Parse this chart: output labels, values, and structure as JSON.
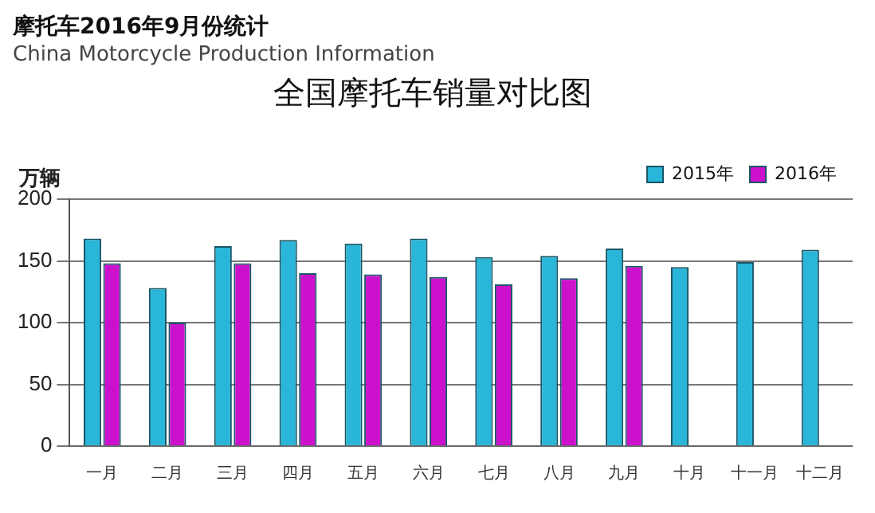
{
  "chart_data": {
    "type": "bar",
    "title": "全国摩托车销量对比图",
    "subtitle": "China Motorcycle Production Information",
    "annotations": [
      "摩托车2016年9月份统计"
    ],
    "ylabel": "万辆",
    "categories": [
      "一月",
      "二月",
      "三月",
      "四月",
      "五月",
      "六月",
      "七月",
      "八月",
      "九月",
      "十月",
      "十一月",
      "十二月"
    ],
    "series": [
      {
        "name": "2015年",
        "color": "#29b6d8",
        "values": [
          168,
          128,
          162,
          167,
          164,
          168,
          153,
          154,
          160,
          145,
          149,
          159
        ]
      },
      {
        "name": "2016年",
        "color": "#cc11cc",
        "values": [
          148,
          100,
          148,
          140,
          139,
          137,
          131,
          136,
          146,
          null,
          null,
          null
        ]
      }
    ],
    "ylim": [
      0,
      200
    ],
    "yticks": [
      0,
      50,
      100,
      150,
      200
    ],
    "grid": "y",
    "legend": "top right"
  }
}
